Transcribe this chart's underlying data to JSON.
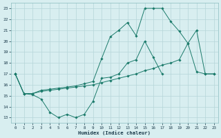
{
  "line1_y": [
    17,
    15.2,
    15.1,
    14.7,
    13.5,
    13.0,
    13.3,
    13.0,
    13.3,
    14.5,
    16.6,
    16.7,
    17.0,
    18.0,
    18.3,
    20.0,
    18.5,
    17.0
  ],
  "line1_x": [
    0,
    1,
    2,
    3,
    4,
    5,
    6,
    7,
    8,
    9,
    10,
    11,
    12,
    13,
    14,
    15,
    16,
    17
  ],
  "line2_y": [
    17,
    15.2,
    15.2,
    15.4,
    15.5,
    15.6,
    15.7,
    15.8,
    15.9,
    16.0,
    16.2,
    16.4,
    16.6,
    16.8,
    17.0,
    17.3,
    17.5,
    17.8,
    18.0,
    18.3,
    19.8,
    21.0,
    17.0,
    17.0
  ],
  "line2_x": [
    0,
    1,
    2,
    3,
    4,
    5,
    6,
    7,
    8,
    9,
    10,
    11,
    12,
    13,
    14,
    15,
    16,
    17,
    18,
    19,
    20,
    21,
    22,
    23
  ],
  "line3_y": [
    17,
    15.2,
    15.2,
    15.5,
    15.6,
    15.7,
    15.8,
    15.9,
    16.1,
    16.3,
    18.4,
    20.4,
    21.0,
    21.7,
    20.5,
    23.0,
    23.0,
    23.0,
    21.8,
    20.9,
    19.8,
    17.2,
    17.0,
    17.0
  ],
  "line3_x": [
    0,
    1,
    2,
    3,
    4,
    5,
    6,
    7,
    8,
    9,
    10,
    11,
    12,
    13,
    14,
    15,
    16,
    17,
    18,
    19,
    20,
    21,
    22,
    23
  ],
  "line_color": "#1a7a6a",
  "bg_color": "#d8eef0",
  "grid_color": "#b5d5d8",
  "xlabel": "Humidex (Indice chaleur)",
  "xlim": [
    -0.5,
    23.5
  ],
  "ylim": [
    12.5,
    23.5
  ],
  "yticks": [
    13,
    14,
    15,
    16,
    17,
    18,
    19,
    20,
    21,
    22,
    23
  ],
  "xticks": [
    0,
    1,
    2,
    3,
    4,
    5,
    6,
    7,
    8,
    9,
    10,
    11,
    12,
    13,
    14,
    15,
    16,
    17,
    18,
    19,
    20,
    21,
    22,
    23
  ]
}
